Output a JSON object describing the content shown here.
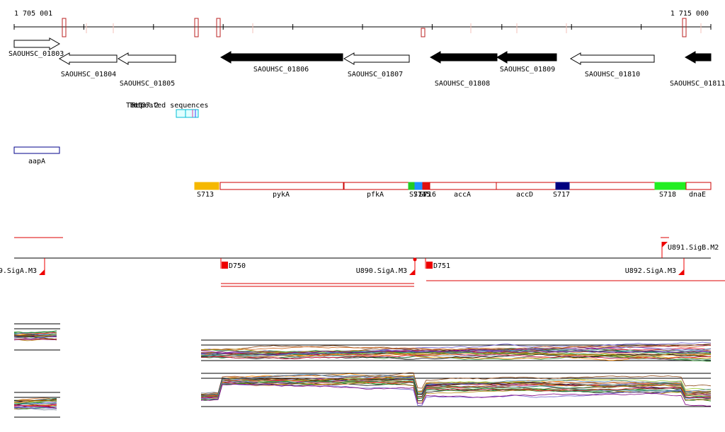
{
  "axis": {
    "start": "1 705 001",
    "end": "1 715 000"
  },
  "genes": [
    "SAOUHSC_01803",
    "SAOUHSC_01804",
    "SAOUHSC_01805",
    "SAOUHSC_01806",
    "SAOUHSC_01807",
    "SAOUHSC_01808",
    "SAOUHSC_01809",
    "SAOUHSC_01810",
    "SAOUHSC_01811"
  ],
  "repeats": [
    "Tet3",
    "Tet37.2",
    "Repeated sequences"
  ],
  "features": [
    "aapA"
  ],
  "segments": [
    "S713",
    "pykA",
    "pfkA",
    "S714",
    "S715",
    "S716",
    "accA",
    "accD",
    "S717",
    "S718",
    "dnaE"
  ],
  "promoters": [
    "9.SigA.M3",
    "D750",
    "U890.SigA.M3",
    "D751",
    "U892.SigA.M3",
    "U891.SigB.M2"
  ]
}
